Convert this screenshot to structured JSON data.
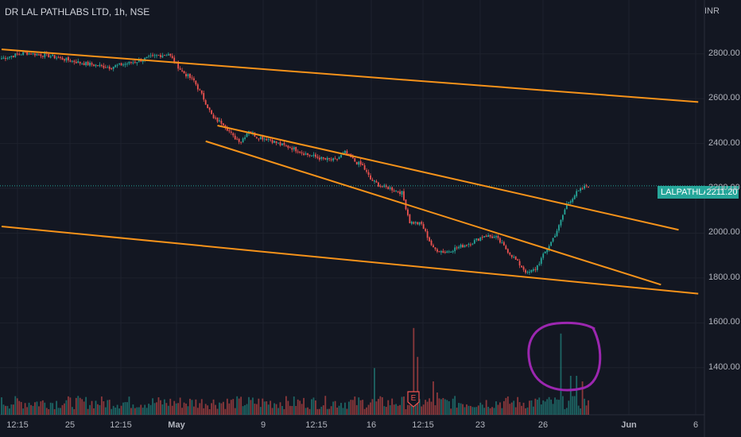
{
  "header": {
    "title": "DR LAL PATHLABS LTD, 1h, NSE",
    "currency": "INR"
  },
  "price_tag": {
    "symbol": "LALPATHLAB",
    "value": "2211.20"
  },
  "earnings_marker": "E",
  "colors": {
    "background": "#131722",
    "up": "#26a69a",
    "down": "#ef5350",
    "trendline": "#f7931a",
    "highlight": "#9c27b0",
    "last_price_line": "#26a69a"
  },
  "chart_data": {
    "type": "candlestick",
    "yticks": [
      "2800.00",
      "2600.00",
      "2400.00",
      "2200.00",
      "2000.00",
      "1800.00",
      "1600.00",
      "1400.00"
    ],
    "ylim": [
      1190,
      3040
    ],
    "xticks": [
      "12:15",
      "25",
      "12:15",
      "May",
      "9",
      "12:15",
      "16",
      "12:15",
      "23",
      "26",
      "Jun",
      "6"
    ],
    "last_price": 2211.2,
    "anchor_closes": [
      [
        0,
        2780
      ],
      [
        12,
        2805
      ],
      [
        25,
        2790
      ],
      [
        40,
        2760
      ],
      [
        55,
        2740
      ],
      [
        68,
        2765
      ],
      [
        78,
        2790
      ],
      [
        85,
        2800
      ],
      [
        92,
        2720
      ],
      [
        98,
        2680
      ],
      [
        103,
        2600
      ],
      [
        108,
        2510
      ],
      [
        113,
        2490
      ],
      [
        118,
        2430
      ],
      [
        122,
        2410
      ],
      [
        126,
        2460
      ],
      [
        130,
        2430
      ],
      [
        136,
        2420
      ],
      [
        142,
        2395
      ],
      [
        148,
        2380
      ],
      [
        156,
        2350
      ],
      [
        164,
        2330
      ],
      [
        170,
        2325
      ],
      [
        175,
        2360
      ],
      [
        180,
        2320
      ],
      [
        184,
        2300
      ],
      [
        188,
        2240
      ],
      [
        193,
        2210
      ],
      [
        198,
        2200
      ],
      [
        204,
        2180
      ],
      [
        208,
        2050
      ],
      [
        214,
        2040
      ],
      [
        220,
        1930
      ],
      [
        226,
        1915
      ],
      [
        232,
        1935
      ],
      [
        240,
        1960
      ],
      [
        246,
        1990
      ],
      [
        252,
        1980
      ],
      [
        258,
        1920
      ],
      [
        263,
        1870
      ],
      [
        268,
        1820
      ],
      [
        272,
        1840
      ],
      [
        276,
        1900
      ],
      [
        280,
        1960
      ],
      [
        284,
        2030
      ],
      [
        288,
        2130
      ],
      [
        293,
        2180
      ],
      [
        298,
        2211
      ]
    ],
    "trendlines_price": [
      {
        "from": [
          0,
          2820
        ],
        "to": [
          355,
          2585
        ]
      },
      {
        "from": [
          0,
          2030
        ],
        "to": [
          355,
          1730
        ]
      },
      {
        "from": [
          110,
          2480
        ],
        "to": [
          345,
          2015
        ]
      },
      {
        "from": [
          104,
          2410
        ],
        "to": [
          336,
          1770
        ]
      }
    ],
    "volume_spikes": [
      [
        190,
        0.42
      ],
      [
        210,
        0.78
      ],
      [
        212,
        0.52
      ],
      [
        220,
        0.3
      ],
      [
        222,
        0.2
      ],
      [
        285,
        0.73
      ],
      [
        290,
        0.35
      ],
      [
        293,
        0.35
      ],
      [
        296,
        0.3
      ]
    ]
  }
}
